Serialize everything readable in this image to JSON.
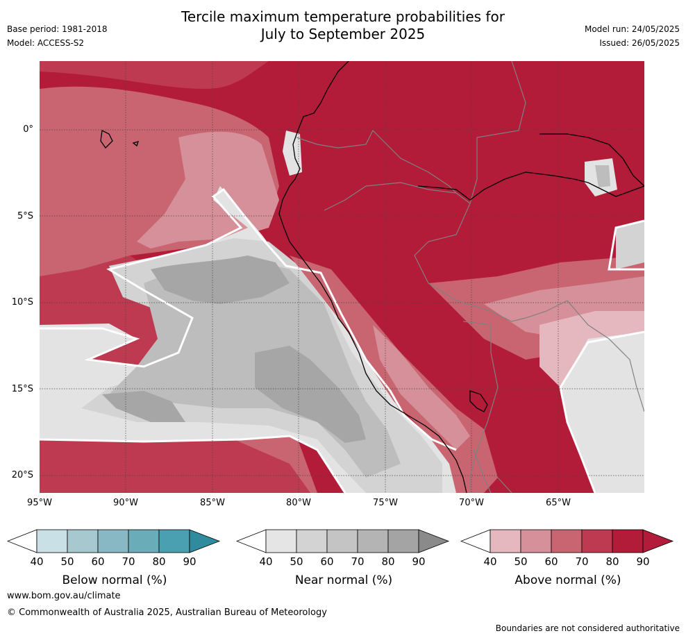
{
  "title": {
    "line1": "Tercile maximum temperature probabilities for",
    "line2": "July to September 2025"
  },
  "meta": {
    "base_period": "Base period: 1981-2018",
    "model": "Model: ACCESS-S2",
    "model_run": "Model run: 24/05/2025",
    "issued": "Issued: 26/05/2025"
  },
  "map": {
    "lat_labels": [
      "0°",
      "5°S",
      "10°S",
      "15°S",
      "20°S"
    ],
    "lon_labels": [
      "95°W",
      "90°W",
      "85°W",
      "80°W",
      "75°W",
      "70°W",
      "65°W"
    ],
    "colors": {
      "above_90": "#b31c39",
      "above_80": "#be3a50",
      "above_70": "#c86570",
      "above_60": "#d69099",
      "above_50": "#e4b8be",
      "near_80": "#a6a6a6",
      "near_70": "#bdbdbd",
      "near_60": "#d3d3d3",
      "near_50": "#e3e3e3",
      "coast": "#000000",
      "border": "#808080"
    }
  },
  "colorbars": [
    {
      "title": "Below normal (%)",
      "ticks": [
        "40",
        "50",
        "60",
        "70",
        "80",
        "90"
      ],
      "colors": [
        "#ffffff",
        "#c8e0e6",
        "#a6c8ce",
        "#88b8c3",
        "#6aacb8",
        "#4aa0b0",
        "#2e8c9e"
      ]
    },
    {
      "title": "Near normal (%)",
      "ticks": [
        "40",
        "50",
        "60",
        "70",
        "80",
        "90"
      ],
      "colors": [
        "#ffffff",
        "#e5e5e5",
        "#d3d3d3",
        "#c4c4c4",
        "#b4b4b4",
        "#a4a4a4",
        "#8a8a8a"
      ]
    },
    {
      "title": "Above normal (%)",
      "ticks": [
        "40",
        "50",
        "60",
        "70",
        "80",
        "90"
      ],
      "colors": [
        "#ffffff",
        "#e4b8be",
        "#d69099",
        "#c86570",
        "#be3a50",
        "#b31c39",
        "#b21b3a"
      ]
    }
  ],
  "footer": {
    "url": "www.bom.gov.au/climate",
    "copyright": "© Commonwealth of Australia 2025, Australian Bureau of Meteorology",
    "note": "Boundaries are not considered authoritative"
  }
}
